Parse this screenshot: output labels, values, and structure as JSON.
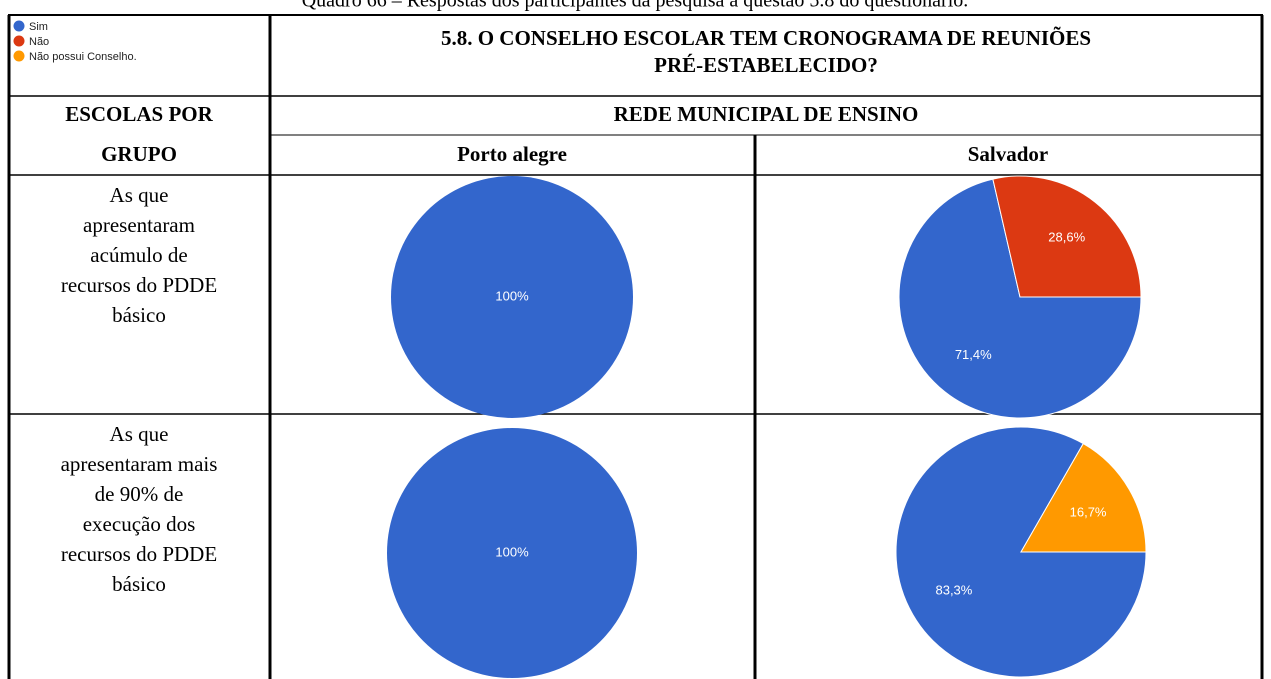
{
  "caption": "Quadro 66 – Respostas dos participantes da pesquisa à questão 5.8 do questionário.",
  "legend": [
    {
      "name": "Sim",
      "color": "#3366cc"
    },
    {
      "name": "Não",
      "color": "#dc3912"
    },
    {
      "name": "Não possui Conselho.",
      "color": "#ff9900"
    }
  ],
  "question": [
    "5.8. O CONSELHO ESCOLAR TEM CRONOGRAMA DE REUNIÕES",
    "PRÉ-ESTABELECIDO?"
  ],
  "group_header": [
    "ESCOLAS POR",
    "GRUPO"
  ],
  "network_header": "REDE MUNICIPAL DE ENSINO",
  "cities": [
    "Porto alegre",
    "Salvador"
  ],
  "rows": [
    {
      "label": [
        "As que",
        "apresentaram",
        "acúmulo de",
        "recursos do PDDE",
        "básico"
      ],
      "charts": [
        {
          "type": "pie",
          "values": [
            100
          ],
          "value_labels": [
            "100%"
          ],
          "colors": [
            "#3366cc"
          ]
        },
        {
          "type": "pie",
          "values": [
            71.4,
            28.6
          ],
          "value_labels": [
            "71,4%",
            "28,6%"
          ],
          "colors": [
            "#3366cc",
            "#dc3912"
          ]
        }
      ]
    },
    {
      "label": [
        "As que",
        "apresentaram mais",
        "de 90% de",
        "execução dos",
        "recursos do PDDE",
        "básico"
      ],
      "charts": [
        {
          "type": "pie",
          "values": [
            100
          ],
          "value_labels": [
            "100%"
          ],
          "colors": [
            "#3366cc"
          ]
        },
        {
          "type": "pie",
          "values": [
            83.3,
            16.7
          ],
          "value_labels": [
            "83,3%",
            "16,7%"
          ],
          "colors": [
            "#3366cc",
            "#ff9900"
          ]
        }
      ]
    }
  ]
}
